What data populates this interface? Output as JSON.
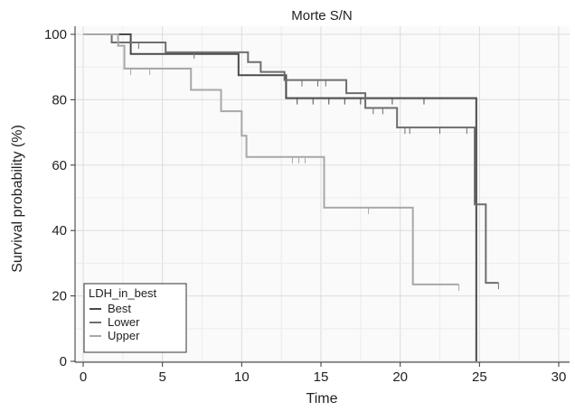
{
  "chart_data": {
    "type": "line",
    "title": "Morte S/N",
    "xlabel": "Time",
    "ylabel": "Survival probability (%)",
    "xlim": [
      0,
      30
    ],
    "ylim": [
      0,
      100
    ],
    "xticks": [
      "0",
      "5",
      "10",
      "15",
      "20",
      "25",
      "30"
    ],
    "yticks": [
      "0",
      "20",
      "40",
      "60",
      "80",
      "100"
    ],
    "grid": true,
    "legend": {
      "title": "LDH_in_best",
      "position": "bottom-left"
    },
    "series": [
      {
        "name": "Best",
        "color": "#4a4a4a",
        "x": [
          0,
          3.0,
          9.8,
          12.8,
          24.8,
          24.8
        ],
        "y": [
          100,
          94,
          87.5,
          80.5,
          80.5,
          0
        ],
        "censor_x": [
          13.5,
          14.5,
          15.5,
          16.5,
          17.5,
          19.5,
          21.5,
          24.8
        ],
        "censor_y": [
          80.5,
          80.5,
          80.5,
          80.5,
          80.5,
          80.5,
          80.5,
          80.5
        ]
      },
      {
        "name": "Lower",
        "color": "#6e6e6e",
        "x": [
          0,
          1.8,
          5.2,
          8.8,
          10.4,
          11.2,
          12.7,
          16.6,
          17.8,
          19.8,
          24.7,
          25.4,
          26.2
        ],
        "y": [
          100,
          97.5,
          94.5,
          94.5,
          91.5,
          88.5,
          86,
          82,
          77.5,
          71.5,
          48,
          24,
          24
        ],
        "censor_x": [
          3.5,
          7.0,
          13.8,
          14.8,
          15.3,
          18.3,
          18.9,
          20.3,
          20.6,
          22.5,
          24.2,
          26.2
        ],
        "censor_y": [
          97.5,
          94.5,
          86,
          86,
          86,
          77.5,
          77.5,
          71.5,
          71.5,
          71.5,
          71.5,
          24
        ]
      },
      {
        "name": "Upper",
        "color": "#a8a8a8",
        "x": [
          0,
          2.2,
          2.6,
          6.8,
          8.7,
          10.0,
          10.3,
          15.2,
          20.8,
          23.7
        ],
        "y": [
          100,
          96.5,
          89.5,
          83,
          76.5,
          69,
          62.5,
          47,
          23.5,
          23.5
        ],
        "censor_x": [
          3.0,
          4.2,
          13.2,
          13.6,
          14.0,
          18.0,
          23.7
        ],
        "censor_y": [
          89.5,
          89.5,
          62.5,
          62.5,
          62.5,
          47,
          23.5
        ]
      }
    ]
  }
}
